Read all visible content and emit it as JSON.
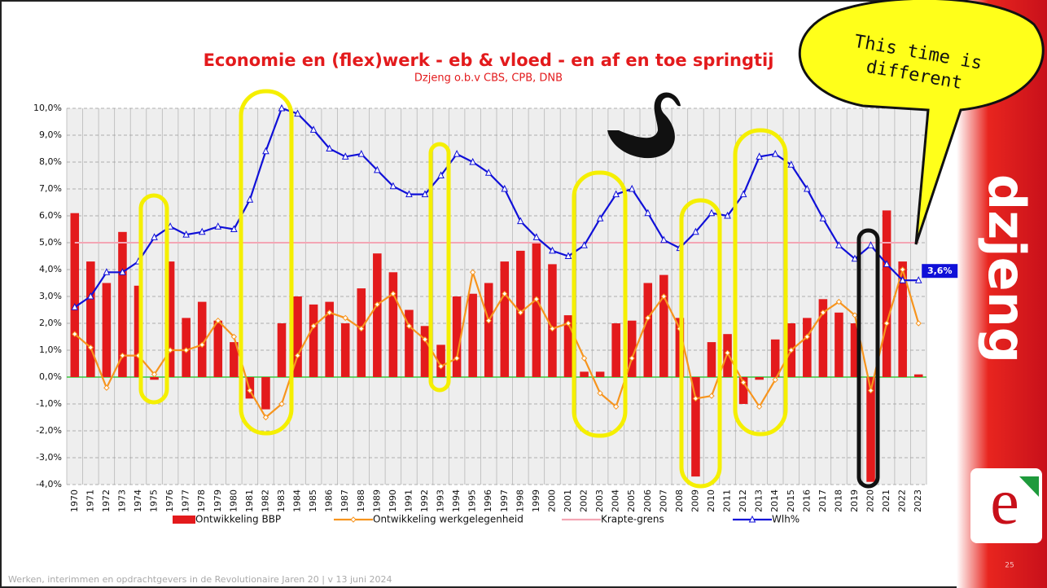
{
  "chart_data": {
    "type": "combo",
    "title": "Economie en (flex)werk - eb & vloed - en af en toe springtij",
    "subtitle": "Dzjeng o.b.v CBS, CPB, DNB",
    "bubble_text": "This time is different",
    "footer": "Werken, interimmen en opdrachtgevers in de Revolutionaire Jaren 20  |  v 13 juni 2024",
    "page_number": "25",
    "brand": "dzjeng",
    "categories": [
      "1970",
      "1971",
      "1972",
      "1973",
      "1974",
      "1975",
      "1976",
      "1977",
      "1978",
      "1979",
      "1980",
      "1981",
      "1982",
      "1983",
      "1984",
      "1985",
      "1986",
      "1987",
      "1988",
      "1989",
      "1990",
      "1991",
      "1992",
      "1993",
      "1994",
      "1995",
      "1996",
      "1997",
      "1998",
      "1999",
      "2000",
      "2001",
      "2002",
      "2003",
      "2004",
      "2005",
      "2006",
      "2007",
      "2008",
      "2009",
      "2010",
      "2011",
      "2012",
      "2013",
      "2014",
      "2015",
      "2016",
      "2017",
      "2018",
      "2019",
      "2020",
      "2021",
      "2022",
      "2023"
    ],
    "series": [
      {
        "name": "Ontwikkeling BBP",
        "kind": "bar",
        "color": "#e31a1c",
        "values": [
          6.1,
          4.3,
          3.5,
          5.4,
          3.4,
          -0.1,
          4.3,
          2.2,
          2.8,
          2.1,
          1.3,
          -0.8,
          -1.2,
          2.0,
          3.0,
          2.7,
          2.8,
          2.0,
          3.3,
          4.6,
          3.9,
          2.5,
          1.9,
          1.2,
          3.0,
          3.1,
          3.5,
          4.3,
          4.7,
          5.0,
          4.2,
          2.3,
          0.2,
          0.2,
          2.0,
          2.1,
          3.5,
          3.8,
          2.2,
          -3.7,
          1.3,
          1.6,
          -1.0,
          -0.1,
          1.4,
          2.0,
          2.2,
          2.9,
          2.4,
          2.0,
          -3.9,
          6.2,
          4.3,
          0.1
        ]
      },
      {
        "name": "Ontwikkeling werkgelegenheid",
        "kind": "line",
        "marker": "diamond",
        "color": "#f7941d",
        "values": [
          1.6,
          1.1,
          -0.4,
          0.8,
          0.8,
          0.1,
          1.0,
          1.0,
          1.2,
          2.1,
          1.5,
          -0.5,
          -1.5,
          -1.0,
          0.8,
          1.9,
          2.4,
          2.2,
          1.8,
          2.7,
          3.1,
          1.9,
          1.4,
          0.4,
          0.7,
          3.9,
          2.1,
          3.1,
          2.4,
          2.9,
          1.8,
          2.0,
          0.7,
          -0.6,
          -1.1,
          0.7,
          2.2,
          3.0,
          1.8,
          -0.8,
          -0.7,
          0.9,
          -0.2,
          -1.1,
          -0.1,
          1.0,
          1.5,
          2.4,
          2.8,
          2.3,
          -0.5,
          2.0,
          4.0,
          2.0
        ]
      },
      {
        "name": "Krapte-grens",
        "kind": "line",
        "marker": "none",
        "color": "#f4a6b4",
        "values": [
          5,
          5,
          5,
          5,
          5,
          5,
          5,
          5,
          5,
          5,
          5,
          5,
          5,
          5,
          5,
          5,
          5,
          5,
          5,
          5,
          5,
          5,
          5,
          5,
          5,
          5,
          5,
          5,
          5,
          5,
          5,
          5,
          5,
          5,
          5,
          5,
          5,
          5,
          5,
          5,
          5,
          5,
          5,
          5,
          5,
          5,
          5,
          5,
          5,
          5,
          5,
          5,
          5,
          5
        ]
      },
      {
        "name": "Wlh%",
        "kind": "line",
        "marker": "triangle",
        "color": "#1010d8",
        "values": [
          2.6,
          3.0,
          3.9,
          3.9,
          4.3,
          5.2,
          5.6,
          5.3,
          5.4,
          5.6,
          5.5,
          6.6,
          8.4,
          10.0,
          9.8,
          9.2,
          8.5,
          8.2,
          8.3,
          7.7,
          7.1,
          6.8,
          6.8,
          7.5,
          8.3,
          8.0,
          7.6,
          7.0,
          5.8,
          5.2,
          4.7,
          4.5,
          4.9,
          5.9,
          6.8,
          7.0,
          6.1,
          5.1,
          4.8,
          5.4,
          6.1,
          6.0,
          6.8,
          8.2,
          8.3,
          7.9,
          7.0,
          5.9,
          4.9,
          4.4,
          4.9,
          4.2,
          3.6,
          3.6
        ],
        "value_labels": [
          null,
          null,
          null,
          null,
          null,
          null,
          null,
          null,
          null,
          null,
          null,
          null,
          null,
          null,
          null,
          null,
          null,
          null,
          null,
          null,
          null,
          null,
          null,
          null,
          null,
          null,
          null,
          null,
          null,
          null,
          null,
          null,
          null,
          null,
          null,
          null,
          null,
          null,
          null,
          null,
          null,
          null,
          null,
          null,
          null,
          null,
          null,
          null,
          null,
          null,
          null,
          null,
          null,
          "3,6%"
        ]
      }
    ],
    "ylim": [
      -4,
      10
    ],
    "yticks": [
      {
        "value": -4,
        "label": "-4,0%"
      },
      {
        "value": -3,
        "label": "-3,0%"
      },
      {
        "value": -2,
        "label": "-2,0%"
      },
      {
        "value": -1,
        "label": "-1,0%"
      },
      {
        "value": 0,
        "label": "0,0%"
      },
      {
        "value": 1,
        "label": "1,0%"
      },
      {
        "value": 2,
        "label": "2,0%"
      },
      {
        "value": 3,
        "label": "3,0%"
      },
      {
        "value": 4,
        "label": "4,0%"
      },
      {
        "value": 5,
        "label": "5,0%"
      },
      {
        "value": 6,
        "label": "6,0%"
      },
      {
        "value": 7,
        "label": "7,0%"
      },
      {
        "value": 8,
        "label": "8,0%"
      },
      {
        "value": 9,
        "label": "9,0%"
      },
      {
        "value": 10,
        "label": "10,0%"
      }
    ],
    "grid": true,
    "legend": "bottom"
  }
}
